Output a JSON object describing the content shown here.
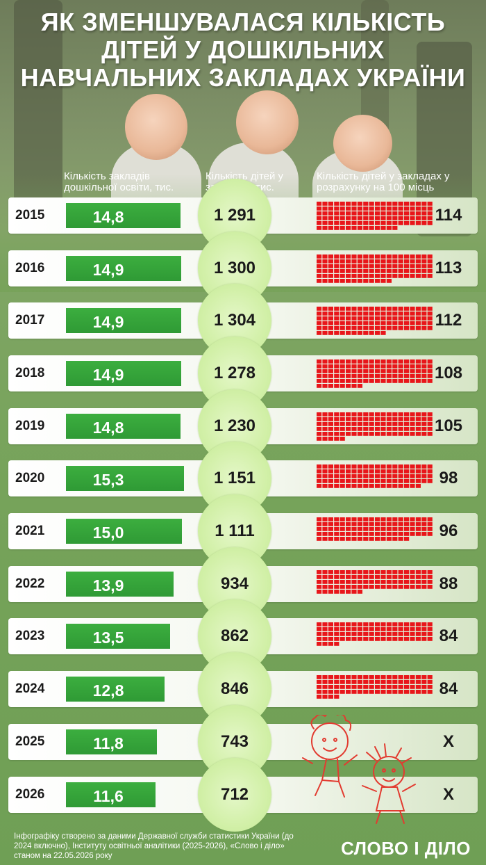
{
  "title": "ЯК ЗМЕНШУВАЛАСЯ КІЛЬКІСТЬ ДІТЕЙ У ДОШКІЛЬНИХ НАВЧАЛЬНИХ ЗАКЛАДАХ УКРАЇНИ",
  "columns": {
    "c1": "Кількість закладів дошкільної освіти, тис.",
    "c2": "Кількість дітей у закладах, тис.",
    "c3": "Кількість дітей у закладах у розрахунку на 100 місць"
  },
  "chart_data": {
    "type": "table",
    "title": "ЯК ЗМЕНШУВАЛАСЯ КІЛЬКІСТЬ ДІТЕЙ У ДОШКІЛЬНИХ НАВЧАЛЬНИХ ЗАКЛАДАХ УКРАЇНИ",
    "years": [
      "2015",
      "2016",
      "2017",
      "2018",
      "2019",
      "2020",
      "2021",
      "2022",
      "2023",
      "2024",
      "2025",
      "2026"
    ],
    "institutions_thousand": [
      14.8,
      14.9,
      14.9,
      14.9,
      14.8,
      15.3,
      15.0,
      13.9,
      13.5,
      12.8,
      11.8,
      11.6
    ],
    "institutions_labels": [
      "14,8",
      "14,9",
      "14,9",
      "14,9",
      "14,8",
      "15,3",
      "15,0",
      "13,9",
      "13,5",
      "12,8",
      "11,8",
      "11,6"
    ],
    "children_thousand": [
      1291,
      1300,
      1304,
      1278,
      1230,
      1151,
      1111,
      934,
      862,
      846,
      743,
      712
    ],
    "children_labels": [
      "1 291",
      "1 300",
      "1 304",
      "1 278",
      "1 230",
      "1 151",
      "1 111",
      "934",
      "862",
      "846",
      "743",
      "712"
    ],
    "children_per_100_places": [
      114,
      113,
      112,
      108,
      105,
      98,
      96,
      88,
      84,
      84,
      null,
      null
    ],
    "children_per_100_places_labels": [
      "114",
      "113",
      "112",
      "108",
      "105",
      "98",
      "96",
      "88",
      "84",
      "84",
      "Х",
      "Х"
    ]
  },
  "colors": {
    "bar": "#2f9a35",
    "grid_cell": "#e8161a",
    "circle": "#d2f0a8"
  },
  "footer": "Інфографіку створено за даними Державної служби статистики України (до 2024 включно), Інституту освітньої аналітики (2025-2026), «Слово і діло» станом на 22.05.2026 року",
  "brand": "СЛОВО І ДІЛО"
}
